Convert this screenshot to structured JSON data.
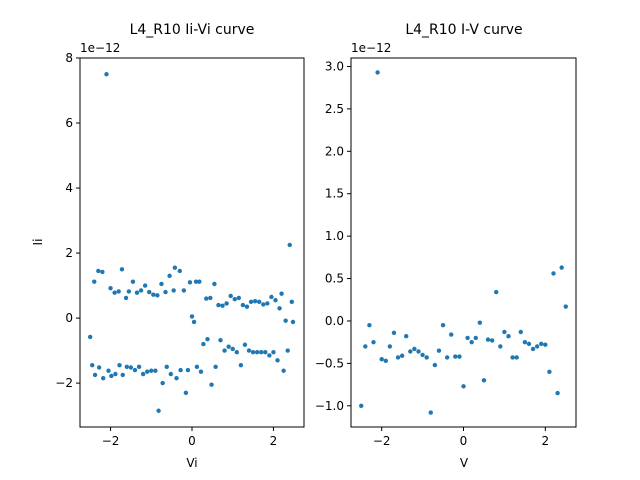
{
  "chart_data": [
    {
      "type": "scatter",
      "title": "L4_R10 Ii-Vi curve",
      "xlabel": "Vi",
      "ylabel": "Ii",
      "offset_text": "1e−12",
      "xlim": [
        -2.75,
        2.75
      ],
      "ylim": [
        -3.35,
        8.0
      ],
      "xticks": [
        -2,
        0,
        2
      ],
      "xtick_labels": [
        "−2",
        "0",
        "2"
      ],
      "yticks": [
        -2,
        0,
        2,
        4,
        6,
        8
      ],
      "ytick_labels": [
        "−2",
        "0",
        "2",
        "4",
        "6",
        "8"
      ],
      "color": "#1f77b4",
      "points": [
        [
          -2.5,
          -0.58
        ],
        [
          -2.45,
          -1.45
        ],
        [
          -2.4,
          1.12
        ],
        [
          -2.38,
          -1.75
        ],
        [
          -2.3,
          1.45
        ],
        [
          -2.28,
          -1.52
        ],
        [
          -2.2,
          1.42
        ],
        [
          -2.18,
          -1.85
        ],
        [
          -2.1,
          7.5
        ],
        [
          -2.05,
          -1.62
        ],
        [
          -2.0,
          0.92
        ],
        [
          -1.98,
          -1.78
        ],
        [
          -1.9,
          0.78
        ],
        [
          -1.88,
          -1.72
        ],
        [
          -1.8,
          0.82
        ],
        [
          -1.78,
          -1.45
        ],
        [
          -1.72,
          1.5
        ],
        [
          -1.7,
          -1.75
        ],
        [
          -1.62,
          0.62
        ],
        [
          -1.6,
          -1.5
        ],
        [
          -1.55,
          0.82
        ],
        [
          -1.5,
          -1.52
        ],
        [
          -1.45,
          1.12
        ],
        [
          -1.4,
          -1.6
        ],
        [
          -1.35,
          0.78
        ],
        [
          -1.3,
          -1.5
        ],
        [
          -1.25,
          0.85
        ],
        [
          -1.2,
          -1.72
        ],
        [
          -1.15,
          1.0
        ],
        [
          -1.1,
          -1.65
        ],
        [
          -1.05,
          0.8
        ],
        [
          -1.0,
          -1.62
        ],
        [
          -0.95,
          0.72
        ],
        [
          -0.9,
          -1.62
        ],
        [
          -0.85,
          0.7
        ],
        [
          -0.82,
          -2.85
        ],
        [
          -0.75,
          1.05
        ],
        [
          -0.72,
          -2.0
        ],
        [
          -0.65,
          0.8
        ],
        [
          -0.62,
          -1.5
        ],
        [
          -0.55,
          1.3
        ],
        [
          -0.52,
          -1.72
        ],
        [
          -0.45,
          0.85
        ],
        [
          -0.42,
          1.55
        ],
        [
          -0.38,
          -1.85
        ],
        [
          -0.3,
          1.45
        ],
        [
          -0.28,
          -1.6
        ],
        [
          -0.2,
          0.85
        ],
        [
          -0.15,
          -2.3
        ],
        [
          -0.1,
          -1.6
        ],
        [
          -0.05,
          1.1
        ],
        [
          0.0,
          0.05
        ],
        [
          0.05,
          -0.12
        ],
        [
          0.1,
          1.12
        ],
        [
          0.12,
          -1.5
        ],
        [
          0.18,
          1.12
        ],
        [
          0.22,
          -1.65
        ],
        [
          0.28,
          -0.8
        ],
        [
          0.35,
          0.6
        ],
        [
          0.38,
          -0.65
        ],
        [
          0.45,
          0.62
        ],
        [
          0.48,
          -2.05
        ],
        [
          0.55,
          1.05
        ],
        [
          0.58,
          -1.5
        ],
        [
          0.65,
          0.4
        ],
        [
          0.7,
          -0.68
        ],
        [
          0.75,
          0.38
        ],
        [
          0.8,
          -1.0
        ],
        [
          0.85,
          0.45
        ],
        [
          0.9,
          -0.88
        ],
        [
          0.95,
          0.68
        ],
        [
          1.0,
          -0.95
        ],
        [
          1.05,
          0.58
        ],
        [
          1.1,
          -1.05
        ],
        [
          1.15,
          0.62
        ],
        [
          1.2,
          -1.45
        ],
        [
          1.25,
          0.4
        ],
        [
          1.3,
          -0.82
        ],
        [
          1.35,
          0.35
        ],
        [
          1.4,
          -1.0
        ],
        [
          1.45,
          0.5
        ],
        [
          1.5,
          -1.05
        ],
        [
          1.55,
          0.52
        ],
        [
          1.6,
          -1.05
        ],
        [
          1.65,
          0.5
        ],
        [
          1.7,
          -1.05
        ],
        [
          1.75,
          0.42
        ],
        [
          1.8,
          -1.05
        ],
        [
          1.85,
          0.45
        ],
        [
          1.9,
          -1.15
        ],
        [
          1.95,
          0.65
        ],
        [
          2.0,
          -1.05
        ],
        [
          2.05,
          0.55
        ],
        [
          2.1,
          -1.3
        ],
        [
          2.15,
          0.3
        ],
        [
          2.2,
          0.75
        ],
        [
          2.25,
          -1.62
        ],
        [
          2.3,
          -0.08
        ],
        [
          2.35,
          -1.0
        ],
        [
          2.4,
          2.25
        ],
        [
          2.45,
          0.5
        ],
        [
          2.48,
          -0.12
        ]
      ]
    },
    {
      "type": "scatter",
      "title": "L4_R10 I-V curve",
      "xlabel": "V",
      "ylabel": "",
      "offset_text": "1e−12",
      "xlim": [
        -2.75,
        2.75
      ],
      "ylim": [
        -1.25,
        3.1
      ],
      "xticks": [
        -2,
        0,
        2
      ],
      "xtick_labels": [
        "−2",
        "0",
        "2"
      ],
      "yticks": [
        -1.0,
        -0.5,
        0.0,
        0.5,
        1.0,
        1.5,
        2.0,
        2.5,
        3.0
      ],
      "ytick_labels": [
        "−1.0",
        "−0.5",
        "0.0",
        "0.5",
        "1.0",
        "1.5",
        "2.0",
        "2.5",
        "3.0"
      ],
      "color": "#1f77b4",
      "points": [
        [
          -2.5,
          -1.0
        ],
        [
          -2.4,
          -0.3
        ],
        [
          -2.3,
          -0.05
        ],
        [
          -2.2,
          -0.25
        ],
        [
          -2.1,
          2.93
        ],
        [
          -2.0,
          -0.45
        ],
        [
          -1.9,
          -0.47
        ],
        [
          -1.8,
          -0.3
        ],
        [
          -1.7,
          -0.14
        ],
        [
          -1.6,
          -0.43
        ],
        [
          -1.5,
          -0.41
        ],
        [
          -1.4,
          -0.18
        ],
        [
          -1.3,
          -0.36
        ],
        [
          -1.2,
          -0.33
        ],
        [
          -1.1,
          -0.36
        ],
        [
          -1.0,
          -0.4
        ],
        [
          -0.9,
          -0.43
        ],
        [
          -0.8,
          -1.08
        ],
        [
          -0.7,
          -0.52
        ],
        [
          -0.6,
          -0.35
        ],
        [
          -0.5,
          -0.05
        ],
        [
          -0.4,
          -0.43
        ],
        [
          -0.3,
          -0.16
        ],
        [
          -0.2,
          -0.42
        ],
        [
          -0.1,
          -0.42
        ],
        [
          0.0,
          -0.77
        ],
        [
          0.1,
          -0.2
        ],
        [
          0.2,
          -0.25
        ],
        [
          0.3,
          -0.2
        ],
        [
          0.4,
          -0.02
        ],
        [
          0.5,
          -0.7
        ],
        [
          0.6,
          -0.22
        ],
        [
          0.7,
          -0.23
        ],
        [
          0.8,
          0.34
        ],
        [
          0.9,
          -0.3
        ],
        [
          1.0,
          -0.13
        ],
        [
          1.1,
          -0.18
        ],
        [
          1.2,
          -0.43
        ],
        [
          1.3,
          -0.43
        ],
        [
          1.4,
          -0.13
        ],
        [
          1.5,
          -0.25
        ],
        [
          1.6,
          -0.27
        ],
        [
          1.7,
          -0.33
        ],
        [
          1.8,
          -0.3
        ],
        [
          1.9,
          -0.27
        ],
        [
          2.0,
          -0.28
        ],
        [
          2.1,
          -0.6
        ],
        [
          2.2,
          0.56
        ],
        [
          2.3,
          -0.85
        ],
        [
          2.4,
          0.63
        ],
        [
          2.5,
          0.17
        ]
      ]
    }
  ]
}
